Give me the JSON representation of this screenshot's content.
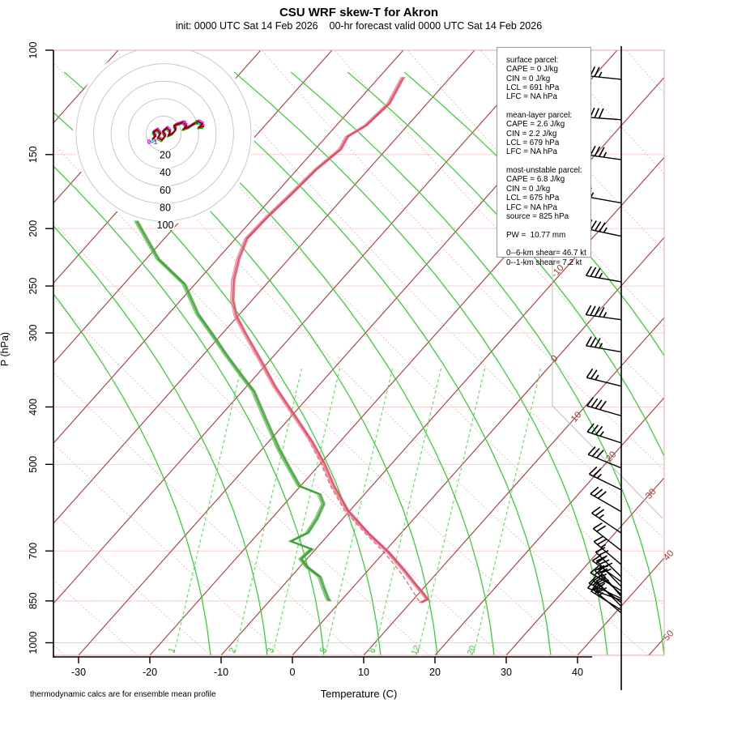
{
  "title": "CSU WRF skew-T for Akron",
  "subtitle": "init: 0000 UTC Sat 14 Feb 2026    00-hr forecast valid 0000 UTC Sat 14 Feb 2026",
  "footer": "thermodynamic calcs are for ensemble mean profile",
  "info_box": {
    "lines": [
      "surface parcel:",
      "CAPE = 0 J/kg",
      "CIN = 0 J/kg",
      "LCL = 691 hPa",
      "LFC = NA hPa",
      "",
      "mean-layer parcel:",
      "CAPE = 2.6 J/kg",
      "CIN = 2.2 J/kg",
      "LCL = 679 hPa",
      "LFC = NA hPa",
      "",
      "most-unstable parcel:",
      "CAPE = 6.8 J/kg",
      "CIN = 0 J/kg",
      "LCL = 675 hPa",
      "LFC = NA hPa",
      "source = 825 hPa",
      "",
      "PW =  10.77 mm",
      "",
      "0--6-km shear= 46.7 kt",
      "0--1-km shear= 7.2 kt"
    ]
  },
  "chart_data": {
    "type": "line",
    "subtype": "skew-T log-p sounding",
    "x_axis": {
      "label": "Temperature (C)",
      "ticks": [
        -30,
        -20,
        -10,
        0,
        10,
        20,
        30,
        40
      ],
      "unit": "C"
    },
    "y_axis": {
      "label": "P (hPa)",
      "ticks": [
        100,
        150,
        200,
        250,
        300,
        400,
        500,
        700,
        850,
        1000
      ],
      "scale": "log",
      "range": [
        100,
        1050
      ],
      "unit": "hPa"
    },
    "isotherm_labels": [
      "-10",
      "0",
      "10",
      "20",
      "30",
      "40",
      "50"
    ],
    "mixing_ratio_labels": [
      "1",
      "2",
      "3",
      "5",
      "8",
      "12",
      "20"
    ],
    "hodograph": {
      "ring_labels": [
        20,
        40,
        60,
        80,
        100
      ],
      "ring_unit": "kt",
      "height_markers": [
        {
          "text": "0",
          "u": -16.7,
          "v": -9.3,
          "color": "#ff00ff"
        },
        {
          "text": "1",
          "u": -9.3,
          "v": -9.3,
          "color": "#ff00ff"
        },
        {
          "text": "5",
          "u": 24.1,
          "v": 12.0,
          "color": "#ff00ff"
        },
        {
          "text": "6",
          "u": 38.0,
          "v": 13.0,
          "color": "#00aa00"
        }
      ],
      "trace_kt": [
        [
          -13.0,
          -6.5
        ],
        [
          -9.3,
          -2.8
        ],
        [
          -12.0,
          1.9
        ],
        [
          -7.4,
          4.6
        ],
        [
          -3.7,
          0.0
        ],
        [
          -6.5,
          -4.6
        ],
        [
          -1.9,
          -7.4
        ],
        [
          1.9,
          -2.8
        ],
        [
          -0.9,
          2.8
        ],
        [
          3.7,
          6.5
        ],
        [
          7.4,
          2.8
        ],
        [
          5.6,
          -1.9
        ],
        [
          10.2,
          0.0
        ],
        [
          13.9,
          4.6
        ],
        [
          12.0,
          9.3
        ],
        [
          16.7,
          11.1
        ],
        [
          22.2,
          13.0
        ],
        [
          25.9,
          9.3
        ],
        [
          23.1,
          5.6
        ],
        [
          28.7,
          7.4
        ],
        [
          34.3,
          11.1
        ],
        [
          39.8,
          13.9
        ],
        [
          44.4,
          11.1
        ],
        [
          40.7,
          7.4
        ],
        [
          46.3,
          8.3
        ]
      ]
    },
    "series": {
      "temperature_p_t": [
        [
          111,
          -56.6
        ],
        [
          123,
          -55.3
        ],
        [
          134,
          -55.8
        ],
        [
          140,
          -57.0
        ],
        [
          147,
          -56.4
        ],
        [
          159,
          -57.3
        ],
        [
          175,
          -57.7
        ],
        [
          191,
          -58.2
        ],
        [
          208,
          -58.4
        ],
        [
          225,
          -57.0
        ],
        [
          244,
          -55.1
        ],
        [
          264,
          -52.7
        ],
        [
          281,
          -50.2
        ],
        [
          301,
          -46.7
        ],
        [
          329,
          -42.0
        ],
        [
          370,
          -35.9
        ],
        [
          410,
          -30.1
        ],
        [
          457,
          -24.0
        ],
        [
          498,
          -19.5
        ],
        [
          544,
          -15.3
        ],
        [
          598,
          -10.3
        ],
        [
          653,
          -4.6
        ],
        [
          704,
          0.7
        ],
        [
          757,
          5.3
        ],
        [
          794,
          8.2
        ],
        [
          829,
          10.9
        ],
        [
          845,
          12.0
        ],
        [
          856,
          11.5
        ]
      ],
      "dewpoint_p_t": [
        [
          194,
          -76.1
        ],
        [
          225,
          -68.3
        ],
        [
          248,
          -61.5
        ],
        [
          279,
          -55.8
        ],
        [
          301,
          -51.4
        ],
        [
          327,
          -46.7
        ],
        [
          356,
          -41.7
        ],
        [
          376,
          -38.4
        ],
        [
          423,
          -32.8
        ],
        [
          472,
          -27.5
        ],
        [
          506,
          -23.9
        ],
        [
          544,
          -20.1
        ],
        [
          561,
          -16.3
        ],
        [
          583,
          -14.5
        ],
        [
          617,
          -13.6
        ],
        [
          653,
          -13.1
        ],
        [
          674,
          -14.4
        ],
        [
          695,
          -10.5
        ],
        [
          722,
          -10.8
        ],
        [
          745,
          -8.9
        ],
        [
          774,
          -5.9
        ],
        [
          806,
          -4.1
        ],
        [
          840,
          -2.2
        ],
        [
          851,
          -1.5
        ]
      ],
      "parcel_p_t": [
        [
          851,
          10.8
        ],
        [
          794,
          7.0
        ],
        [
          757,
          4.3
        ],
        [
          704,
          -0.2
        ],
        [
          653,
          -5.3
        ],
        [
          598,
          -11.0
        ],
        [
          544,
          -16.0
        ],
        [
          498,
          -20.2
        ],
        [
          457,
          -24.6
        ],
        [
          430,
          -27.5
        ]
      ]
    },
    "wind_barbs_p_ang_full_half": [
      [
        112,
        6,
        3,
        1
      ],
      [
        131,
        4,
        4,
        0
      ],
      [
        153,
        8,
        4,
        1
      ],
      [
        181,
        10,
        1,
        1
      ],
      [
        206,
        12,
        4,
        1
      ],
      [
        246,
        10,
        3,
        1
      ],
      [
        285,
        8,
        4,
        1
      ],
      [
        323,
        10,
        3,
        1
      ],
      [
        369,
        14,
        2,
        1
      ],
      [
        414,
        16,
        4,
        0
      ],
      [
        460,
        18,
        3,
        1
      ],
      [
        507,
        22,
        3,
        0
      ],
      [
        552,
        26,
        2,
        1
      ],
      [
        601,
        30,
        3,
        0
      ],
      [
        653,
        34,
        2,
        1
      ],
      [
        699,
        38,
        2,
        0
      ],
      [
        738,
        40,
        2,
        1
      ],
      [
        774,
        44,
        2,
        1
      ],
      [
        789,
        36,
        2,
        0
      ],
      [
        804,
        46,
        3,
        0
      ],
      [
        817,
        30,
        2,
        1
      ],
      [
        829,
        42,
        2,
        1
      ],
      [
        842,
        25,
        2,
        0
      ],
      [
        856,
        38,
        2,
        1
      ],
      [
        868,
        45,
        2,
        0
      ],
      [
        881,
        32,
        2,
        1
      ],
      [
        891,
        40,
        2,
        0
      ],
      [
        836,
        50,
        2,
        0
      ],
      [
        848,
        20,
        2,
        1
      ]
    ],
    "colors": {
      "temperature": "#dd4660",
      "dewpoint": "#379e2e",
      "parcel": "#e4556d",
      "isotherm": "#aa3939",
      "dry_adiabat": "#eab9b9",
      "moist_adiabat": "#21cf21",
      "mixing_ratio": "#4ee24e",
      "pressure_line": "#f4caca",
      "frame": "#e5a9a9",
      "hodograph_ring": "#c8c8c8",
      "barb": "#000000",
      "boundary": "#bbbbbb"
    }
  }
}
